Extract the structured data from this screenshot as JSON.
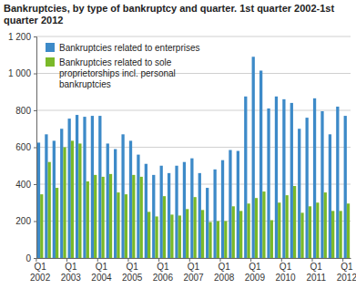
{
  "chart_data": {
    "type": "bar",
    "title": "Bankruptcies, by type of bankruptcy and quarter. 1st quarter 2002-1st quarter 2012",
    "categories": [
      "Q1 2002",
      null,
      null,
      null,
      "Q1 2003",
      null,
      null,
      null,
      "Q1 2004",
      null,
      null,
      null,
      "Q1 2005",
      null,
      null,
      null,
      "Q1 2006",
      null,
      null,
      null,
      "Q1 2007",
      null,
      null,
      null,
      "Q1 2008",
      null,
      null,
      null,
      "Q1 2009",
      null,
      null,
      null,
      "Q1 2010",
      null,
      null,
      null,
      "Q1 2011",
      null,
      null,
      null,
      "Q1 2012"
    ],
    "series": [
      {
        "name": "Bankruptcies related to enterprises",
        "color": "#3d8ac8",
        "values": [
          625,
          670,
          635,
          700,
          755,
          775,
          765,
          770,
          770,
          620,
          590,
          670,
          635,
          560,
          510,
          450,
          500,
          460,
          500,
          520,
          540,
          460,
          380,
          480,
          530,
          585,
          580,
          875,
          1090,
          1015,
          810,
          875,
          860,
          840,
          700,
          760,
          865,
          795,
          670,
          820,
          770
        ]
      },
      {
        "name": "Bankruptcies related to sole proprietorships incl. personal bankruptcies",
        "color": "#7ab929",
        "values": [
          345,
          520,
          380,
          600,
          635,
          620,
          415,
          450,
          440,
          455,
          355,
          345,
          450,
          440,
          250,
          225,
          335,
          235,
          230,
          265,
          330,
          260,
          195,
          200,
          200,
          280,
          255,
          295,
          325,
          360,
          205,
          300,
          340,
          390,
          245,
          280,
          300,
          355,
          255,
          255,
          295
        ]
      }
    ],
    "ylim": [
      0,
      1200
    ],
    "yticks": [
      0,
      200,
      400,
      600,
      800,
      {
        "value": 1000,
        "label": "1 000"
      },
      {
        "value": 1200,
        "label": "1 200"
      }
    ],
    "grid": true,
    "legend": "upper left"
  }
}
